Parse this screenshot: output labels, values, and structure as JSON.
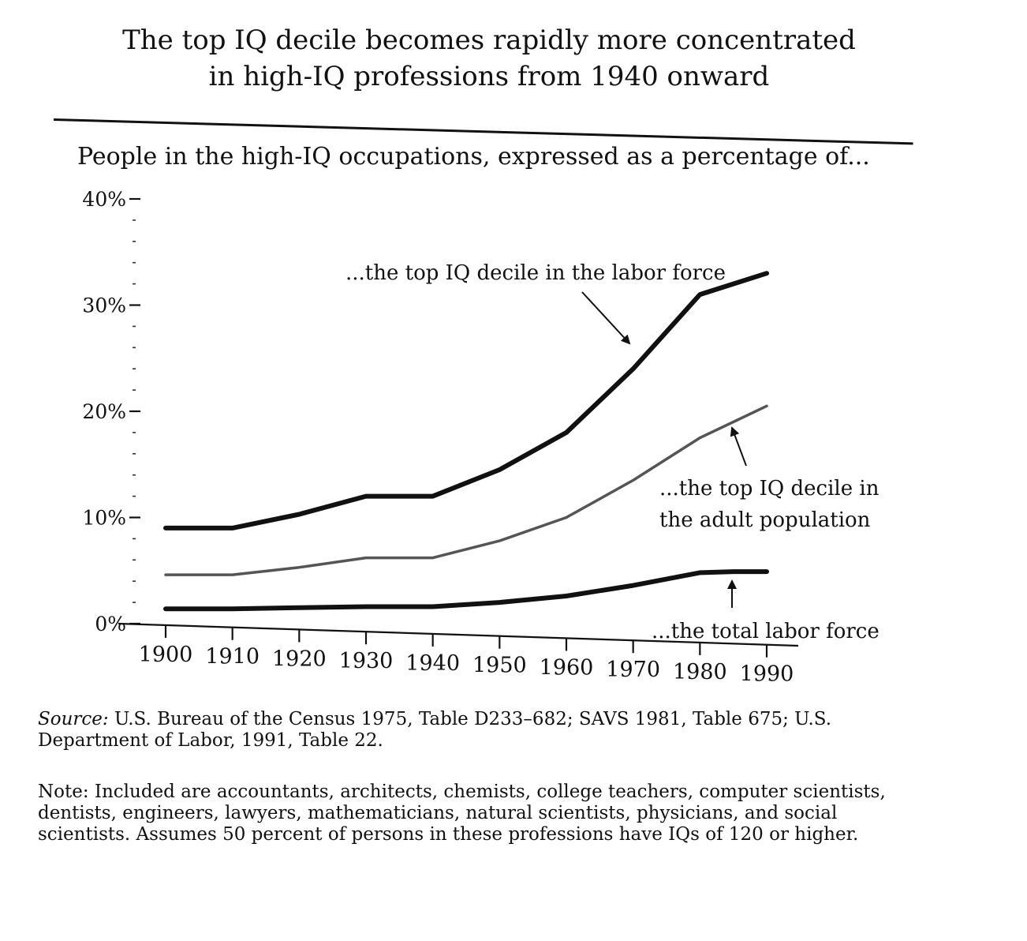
{
  "title_line1": "The top IQ decile becomes rapidly more concentrated",
  "title_line2": "in high-IQ professions from 1940 onward",
  "subtitle": "People in the high-IQ occupations, expressed as a percentage of...",
  "source": {
    "label": "Source:",
    "text": " U.S. Bureau of the Census 1975, Table D233–682; SAVS 1981, Table 675; U.S. Department of Labor, 1991, Table 22."
  },
  "note": "Note: Included are accountants, architects, chemists, college teachers, computer scientists, dentists, engineers, lawyers, mathematicians, natural scientists, physicians, and social scientists. Assumes 50 percent of persons in these professions have IQs of 120 or higher.",
  "chart_data": {
    "type": "line",
    "x": [
      1900,
      1910,
      1920,
      1930,
      1940,
      1950,
      1960,
      1970,
      1980,
      1985,
      1990
    ],
    "xticks": [
      1900,
      1910,
      1920,
      1930,
      1940,
      1950,
      1960,
      1970,
      1980,
      1990
    ],
    "yticks": [
      0,
      10,
      20,
      30,
      40
    ],
    "ytick_labels": [
      "0%",
      "10%",
      "20%",
      "30%",
      "40%"
    ],
    "ylim": [
      0,
      40
    ],
    "xlim": [
      1900,
      1990
    ],
    "series": [
      {
        "name": "...the top IQ decile in the labor force",
        "style": "solid",
        "values": [
          9,
          9,
          10.3,
          12,
          12,
          14.5,
          18,
          24,
          31,
          32,
          33
        ]
      },
      {
        "name": "...the top IQ decile in the adult population",
        "style": "grey",
        "values": [
          4.6,
          4.6,
          5.3,
          6.2,
          6.2,
          7.8,
          10,
          13.5,
          17.5,
          19,
          20.5
        ]
      },
      {
        "name": "...the total labor force",
        "style": "solid",
        "values": [
          1.4,
          1.4,
          1.5,
          1.6,
          1.6,
          2,
          2.6,
          3.6,
          4.8,
          4.9,
          4.9
        ]
      }
    ],
    "annotations": [
      "...the top IQ decile in the labor force",
      "...the top IQ decile in",
      "the adult population",
      "...the total labor force"
    ],
    "colors": {
      "line": "#111111",
      "grey_line": "#555555"
    }
  }
}
